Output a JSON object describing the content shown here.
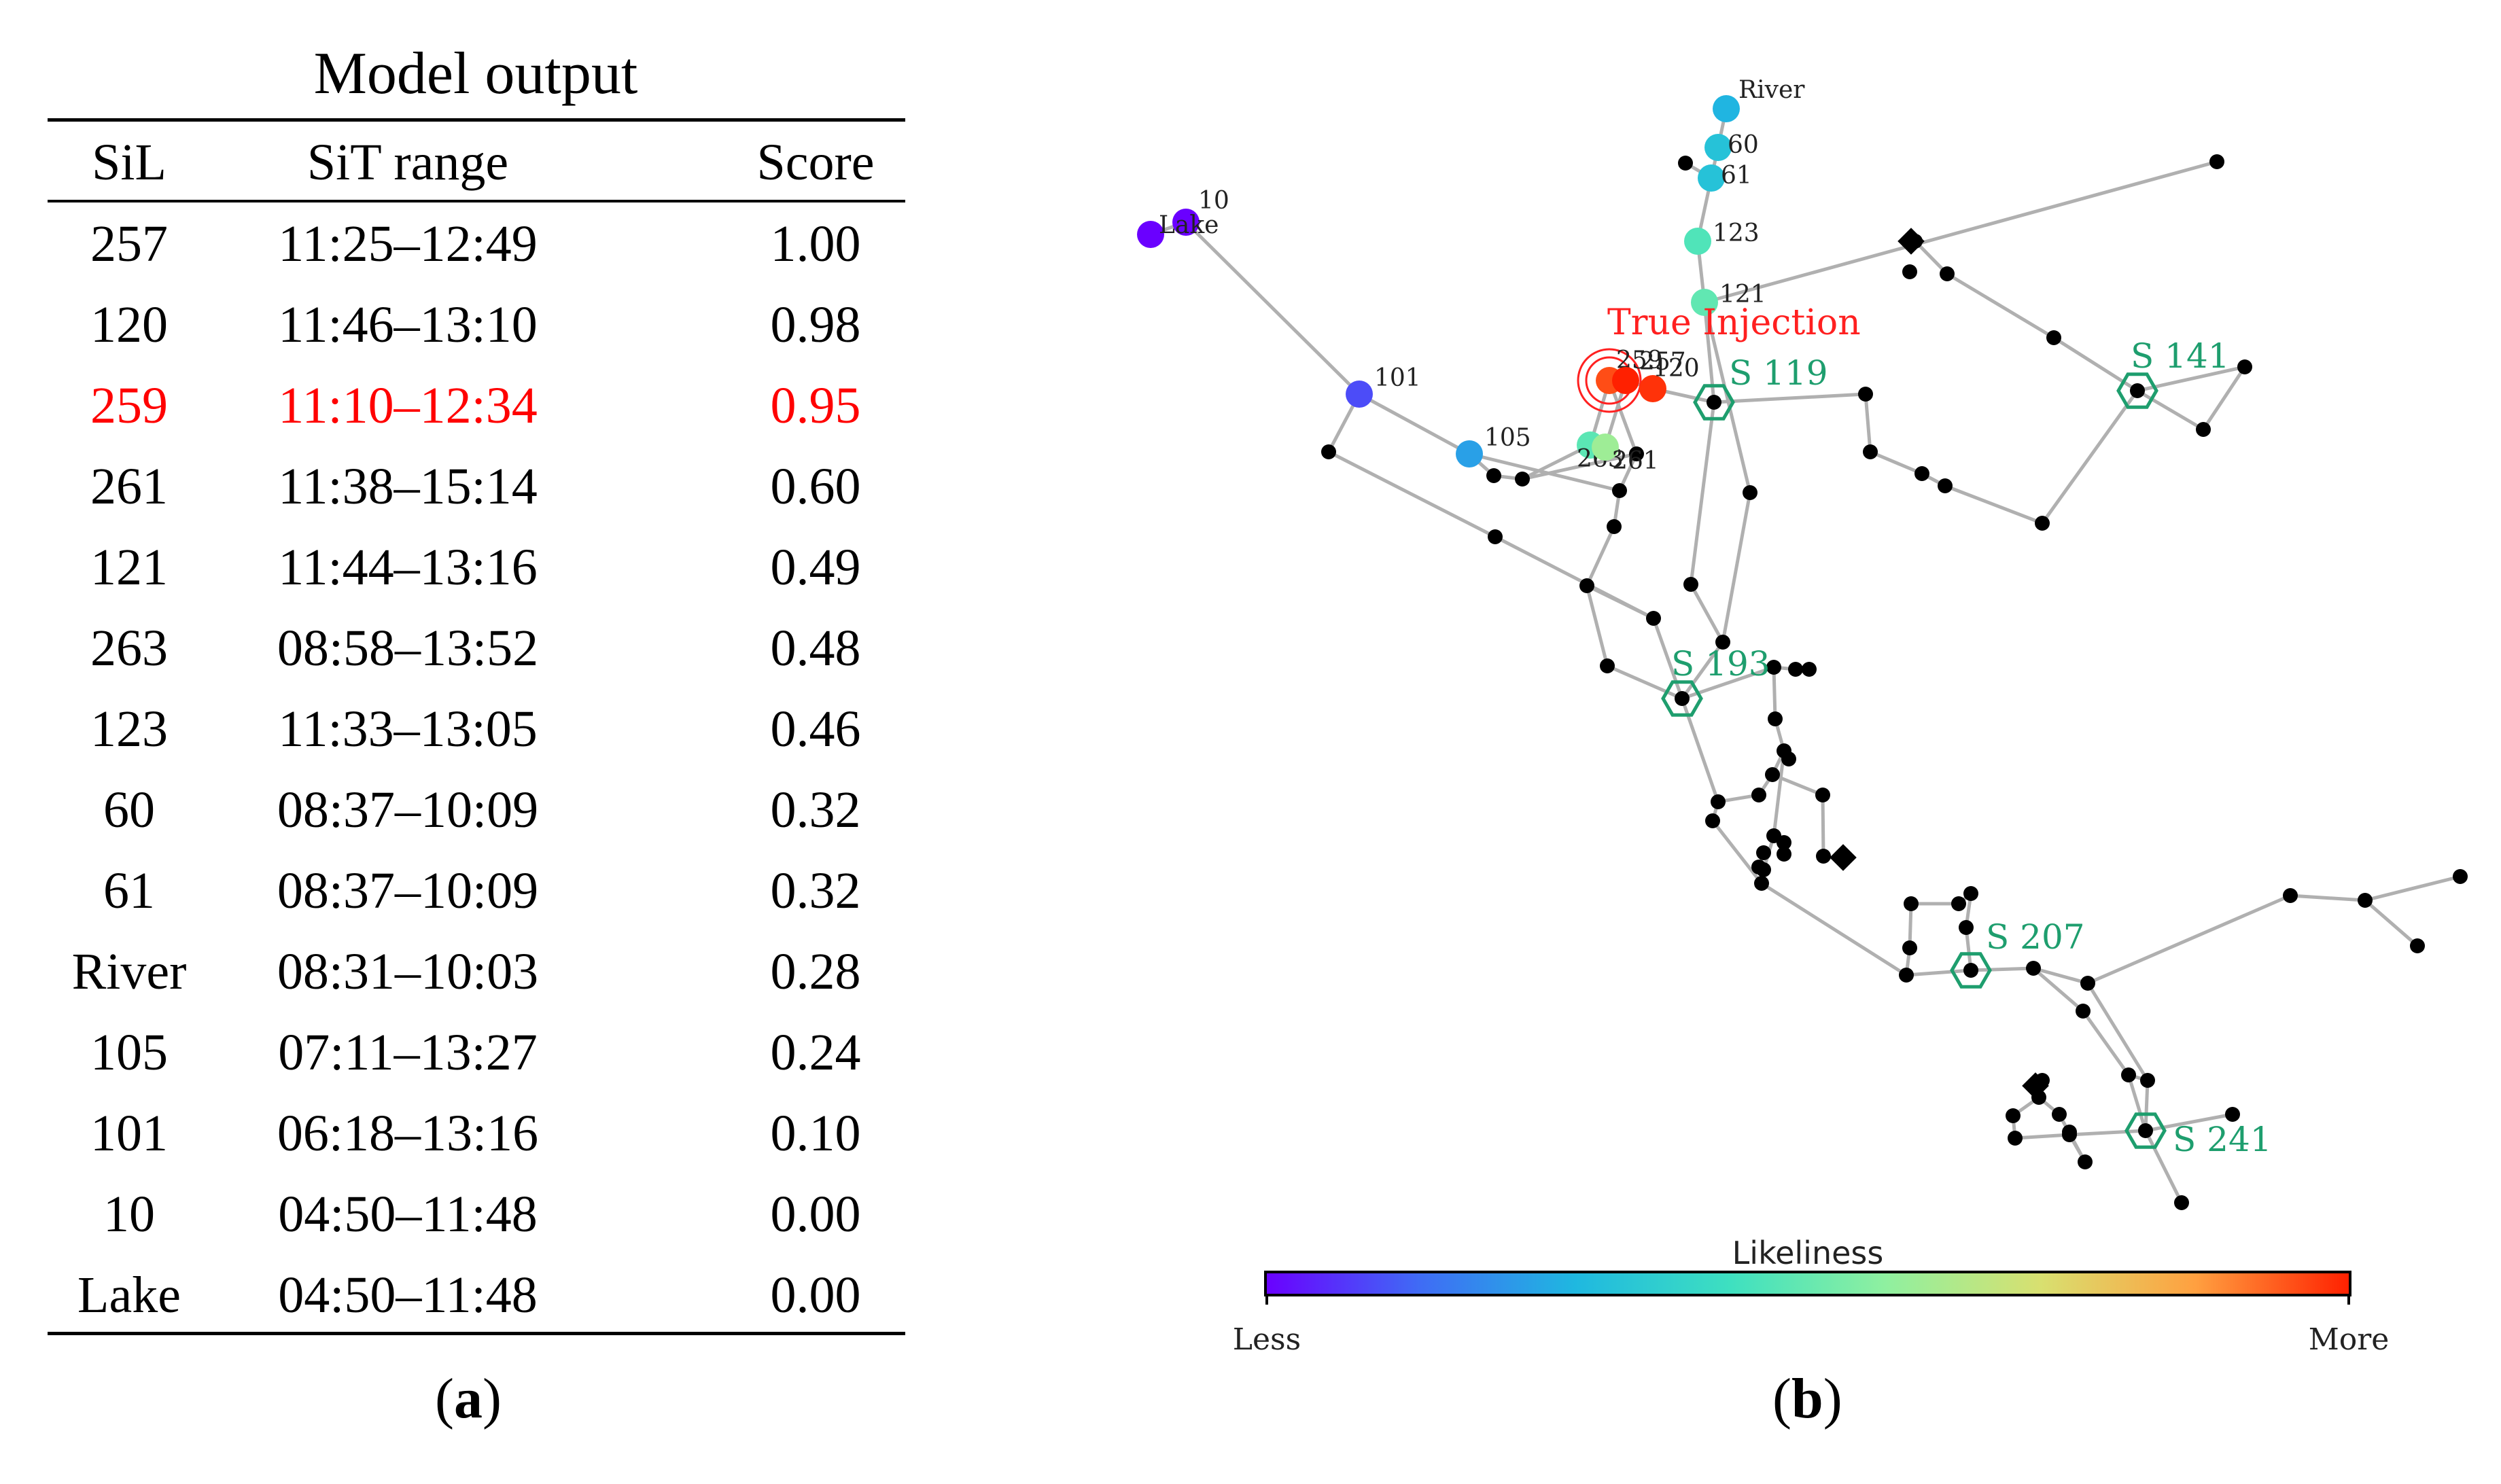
{
  "panel_a": {
    "title": "Model output",
    "headers": [
      "SiL",
      "SiT range",
      "Score"
    ],
    "rows": [
      {
        "sil": "257",
        "range": "11:25–12:49",
        "score": "1.00",
        "highlight": false
      },
      {
        "sil": "120",
        "range": "11:46–13:10",
        "score": "0.98",
        "highlight": false
      },
      {
        "sil": "259",
        "range": "11:10–12:34",
        "score": "0.95",
        "highlight": true
      },
      {
        "sil": "261",
        "range": "11:38–15:14",
        "score": "0.60",
        "highlight": false
      },
      {
        "sil": "121",
        "range": "11:44–13:16",
        "score": "0.49",
        "highlight": false
      },
      {
        "sil": "263",
        "range": "08:58–13:52",
        "score": "0.48",
        "highlight": false
      },
      {
        "sil": "123",
        "range": "11:33–13:05",
        "score": "0.46",
        "highlight": false
      },
      {
        "sil": "60",
        "range": "08:37–10:09",
        "score": "0.32",
        "highlight": false
      },
      {
        "sil": "61",
        "range": "08:37–10:09",
        "score": "0.32",
        "highlight": false
      },
      {
        "sil": "River",
        "range": "08:31–10:03",
        "score": "0.28",
        "highlight": false
      },
      {
        "sil": "105",
        "range": "07:11–13:27",
        "score": "0.24",
        "highlight": false
      },
      {
        "sil": "101",
        "range": "06:18–13:16",
        "score": "0.10",
        "highlight": false
      },
      {
        "sil": "10",
        "range": "04:50–11:48",
        "score": "0.00",
        "highlight": false
      },
      {
        "sil": "Lake",
        "range": "04:50–11:48",
        "score": "0.00",
        "highlight": false
      }
    ],
    "caption_open": "(",
    "caption_letter": "a",
    "caption_close": ")"
  },
  "panel_b": {
    "true_injection_label": "True Injection",
    "candidates": [
      {
        "label": "River",
        "score": 0.28
      },
      {
        "label": "60",
        "score": 0.32
      },
      {
        "label": "61",
        "score": 0.32
      },
      {
        "label": "123",
        "score": 0.46
      },
      {
        "label": "121",
        "score": 0.49
      },
      {
        "label": "10",
        "score": 0.0
      },
      {
        "label": "Lake",
        "score": 0.0
      },
      {
        "label": "101",
        "score": 0.1
      },
      {
        "label": "105",
        "score": 0.24
      },
      {
        "label": "259",
        "score": 0.95
      },
      {
        "label": "257",
        "score": 1.0
      },
      {
        "label": "120",
        "score": 0.98
      },
      {
        "label": "263",
        "score": 0.48
      },
      {
        "label": "261",
        "score": 0.6
      }
    ],
    "sensors": [
      {
        "label": "S 119"
      },
      {
        "label": "S 141"
      },
      {
        "label": "S 193"
      },
      {
        "label": "S 207"
      },
      {
        "label": "S 241"
      }
    ],
    "colorbar": {
      "title": "Likeliness",
      "low_label": "Less",
      "high_label": "More",
      "colors": [
        "#6a00ff",
        "#3f6cf5",
        "#1fb8e0",
        "#3ee0c0",
        "#8ff0a0",
        "#d8e070",
        "#ffa040",
        "#ff2000"
      ]
    },
    "node_color": "#000000",
    "edge_color": "#b0b0b0",
    "sensor_color": "#1e9e6e",
    "injection_color": "#ff2020",
    "caption_open": "(",
    "caption_letter": "b",
    "caption_close": ")"
  }
}
